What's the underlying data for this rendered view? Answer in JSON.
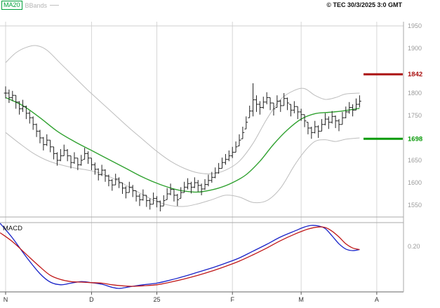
{
  "header": {
    "copyright": "© TEC 30/3/2025 3:0 GMT"
  },
  "legend": {
    "ma20": "MA20",
    "bbands": "BBands"
  },
  "chart_data": {
    "type": "candlestick",
    "title": "",
    "x_labels": [
      {
        "label": "N",
        "index": 0
      },
      {
        "label": "D",
        "index": 25
      },
      {
        "label": "25",
        "index": 44
      },
      {
        "label": "F",
        "index": 66
      },
      {
        "label": "M",
        "index": 86
      },
      {
        "label": "A",
        "index": 108
      }
    ],
    "price_panel": {
      "ylim": [
        1523,
        1961
      ],
      "y_ticks": [
        1950,
        1900,
        1800,
        1750,
        1650,
        1600,
        1550
      ],
      "levels": [
        {
          "name": "resistance",
          "label": "1842",
          "value": 1842,
          "color": "#aa1111"
        },
        {
          "name": "support",
          "label": "1698",
          "value": 1698,
          "color": "#089a08"
        }
      ],
      "bar_color": "#222222",
      "bars_hlc": [
        [
          1815,
          1788,
          1800
        ],
        [
          1808,
          1778,
          1790
        ],
        [
          1805,
          1782,
          1795
        ],
        [
          1795,
          1765,
          1780
        ],
        [
          1782,
          1752,
          1765
        ],
        [
          1785,
          1758,
          1770
        ],
        [
          1772,
          1742,
          1755
        ],
        [
          1760,
          1732,
          1745
        ],
        [
          1748,
          1718,
          1730
        ],
        [
          1732,
          1702,
          1715
        ],
        [
          1718,
          1688,
          1700
        ],
        [
          1702,
          1672,
          1685
        ],
        [
          1708,
          1682,
          1695
        ],
        [
          1695,
          1668,
          1680
        ],
        [
          1680,
          1652,
          1665
        ],
        [
          1668,
          1638,
          1650
        ],
        [
          1675,
          1648,
          1660
        ],
        [
          1685,
          1660,
          1672
        ],
        [
          1675,
          1648,
          1660
        ],
        [
          1660,
          1632,
          1645
        ],
        [
          1668,
          1642,
          1655
        ],
        [
          1655,
          1628,
          1640
        ],
        [
          1662,
          1638,
          1650
        ],
        [
          1678,
          1652,
          1665
        ],
        [
          1670,
          1642,
          1655
        ],
        [
          1655,
          1628,
          1640
        ],
        [
          1645,
          1618,
          1630
        ],
        [
          1632,
          1605,
          1618
        ],
        [
          1640,
          1615,
          1628
        ],
        [
          1630,
          1602,
          1615
        ],
        [
          1618,
          1592,
          1605
        ],
        [
          1608,
          1582,
          1595
        ],
        [
          1620,
          1595,
          1608
        ],
        [
          1612,
          1588,
          1600
        ],
        [
          1600,
          1575,
          1588
        ],
        [
          1592,
          1565,
          1578
        ],
        [
          1602,
          1578,
          1590
        ],
        [
          1595,
          1568,
          1582
        ],
        [
          1582,
          1558,
          1570
        ],
        [
          1575,
          1548,
          1562
        ],
        [
          1585,
          1560,
          1572
        ],
        [
          1572,
          1546,
          1560
        ],
        [
          1565,
          1540,
          1552
        ],
        [
          1578,
          1552,
          1565
        ],
        [
          1570,
          1545,
          1558
        ],
        [
          1560,
          1536,
          1548
        ],
        [
          1572,
          1548,
          1560
        ],
        [
          1588,
          1562,
          1575
        ],
        [
          1598,
          1572,
          1585
        ],
        [
          1585,
          1558,
          1572
        ],
        [
          1575,
          1548,
          1562
        ],
        [
          1590,
          1565,
          1578
        ],
        [
          1602,
          1578,
          1590
        ],
        [
          1610,
          1585,
          1598
        ],
        [
          1602,
          1576,
          1590
        ],
        [
          1612,
          1588,
          1600
        ],
        [
          1606,
          1580,
          1594
        ],
        [
          1598,
          1572,
          1586
        ],
        [
          1608,
          1584,
          1596
        ],
        [
          1618,
          1592,
          1605
        ],
        [
          1624,
          1600,
          1612
        ],
        [
          1634,
          1610,
          1622
        ],
        [
          1644,
          1620,
          1632
        ],
        [
          1656,
          1632,
          1645
        ],
        [
          1664,
          1640,
          1652
        ],
        [
          1672,
          1648,
          1660
        ],
        [
          1680,
          1655,
          1668
        ],
        [
          1692,
          1668,
          1680
        ],
        [
          1708,
          1682,
          1695
        ],
        [
          1725,
          1698,
          1712
        ],
        [
          1748,
          1720,
          1735
        ],
        [
          1772,
          1745,
          1760
        ],
        [
          1822,
          1748,
          1785
        ],
        [
          1795,
          1758,
          1775
        ],
        [
          1782,
          1752,
          1768
        ],
        [
          1792,
          1765,
          1780
        ],
        [
          1802,
          1775,
          1790
        ],
        [
          1790,
          1762,
          1778
        ],
        [
          1778,
          1750,
          1765
        ],
        [
          1795,
          1768,
          1782
        ],
        [
          1785,
          1758,
          1772
        ],
        [
          1800,
          1772,
          1788
        ],
        [
          1790,
          1762,
          1778
        ],
        [
          1775,
          1748,
          1762
        ],
        [
          1782,
          1755,
          1770
        ],
        [
          1770,
          1742,
          1758
        ],
        [
          1765,
          1738,
          1752
        ],
        [
          1752,
          1724,
          1738
        ],
        [
          1735,
          1708,
          1722
        ],
        [
          1725,
          1698,
          1712
        ],
        [
          1738,
          1710,
          1725
        ],
        [
          1728,
          1700,
          1715
        ],
        [
          1742,
          1715,
          1730
        ],
        [
          1755,
          1728,
          1742
        ],
        [
          1748,
          1720,
          1735
        ],
        [
          1760,
          1732,
          1748
        ],
        [
          1750,
          1722,
          1738
        ],
        [
          1742,
          1715,
          1730
        ],
        [
          1758,
          1730,
          1745
        ],
        [
          1770,
          1744,
          1758
        ],
        [
          1780,
          1754,
          1768
        ],
        [
          1775,
          1748,
          1762
        ],
        [
          1788,
          1762,
          1775
        ],
        [
          1795,
          1768,
          1782
        ]
      ],
      "ma20": {
        "name": "MA20",
        "color": "#2fa12f",
        "points": [
          [
            0,
            1790
          ],
          [
            5,
            1772
          ],
          [
            10,
            1745
          ],
          [
            15,
            1715
          ],
          [
            20,
            1692
          ],
          [
            25,
            1672
          ],
          [
            30,
            1652
          ],
          [
            35,
            1632
          ],
          [
            40,
            1612
          ],
          [
            45,
            1596
          ],
          [
            50,
            1584
          ],
          [
            55,
            1579
          ],
          [
            58,
            1581
          ],
          [
            62,
            1588
          ],
          [
            66,
            1600
          ],
          [
            70,
            1618
          ],
          [
            74,
            1648
          ],
          [
            78,
            1686
          ],
          [
            82,
            1718
          ],
          [
            86,
            1742
          ],
          [
            90,
            1754
          ],
          [
            94,
            1757
          ],
          [
            98,
            1760
          ],
          [
            103,
            1766
          ]
        ]
      },
      "bollinger_upper": {
        "name": "BBands upper",
        "color": "#bdbdbd",
        "points": [
          [
            0,
            1868
          ],
          [
            3,
            1890
          ],
          [
            6,
            1902
          ],
          [
            9,
            1906
          ],
          [
            12,
            1896
          ],
          [
            16,
            1866
          ],
          [
            20,
            1836
          ],
          [
            24,
            1806
          ],
          [
            28,
            1778
          ],
          [
            32,
            1750
          ],
          [
            36,
            1722
          ],
          [
            40,
            1696
          ],
          [
            44,
            1670
          ],
          [
            48,
            1648
          ],
          [
            52,
            1632
          ],
          [
            56,
            1622
          ],
          [
            60,
            1620
          ],
          [
            64,
            1628
          ],
          [
            68,
            1648
          ],
          [
            72,
            1688
          ],
          [
            76,
            1742
          ],
          [
            80,
            1786
          ],
          [
            84,
            1806
          ],
          [
            87,
            1810
          ],
          [
            90,
            1795
          ],
          [
            93,
            1786
          ],
          [
            96,
            1790
          ],
          [
            99,
            1798
          ],
          [
            103,
            1800
          ]
        ]
      },
      "bollinger_lower": {
        "name": "BBands lower",
        "color": "#bdbdbd",
        "points": [
          [
            0,
            1712
          ],
          [
            4,
            1688
          ],
          [
            8,
            1666
          ],
          [
            12,
            1650
          ],
          [
            16,
            1640
          ],
          [
            20,
            1633
          ],
          [
            24,
            1628
          ],
          [
            28,
            1620
          ],
          [
            32,
            1607
          ],
          [
            36,
            1590
          ],
          [
            40,
            1573
          ],
          [
            44,
            1558
          ],
          [
            48,
            1549
          ],
          [
            52,
            1547
          ],
          [
            56,
            1553
          ],
          [
            60,
            1562
          ],
          [
            64,
            1572
          ],
          [
            68,
            1568
          ],
          [
            72,
            1556
          ],
          [
            76,
            1560
          ],
          [
            80,
            1588
          ],
          [
            84,
            1638
          ],
          [
            87,
            1670
          ],
          [
            90,
            1692
          ],
          [
            93,
            1696
          ],
          [
            96,
            1692
          ],
          [
            99,
            1697
          ],
          [
            103,
            1700
          ]
        ]
      }
    },
    "macd_panel": {
      "label": "MACD",
      "ylim": [
        -0.23,
        0.43
      ],
      "y_ticks": [
        {
          "label": "0.20",
          "value": 0.2
        }
      ],
      "macd_line": {
        "name": "MACD",
        "color": "#1822c8",
        "points": [
          [
            -1.6,
            0.42
          ],
          [
            2,
            0.28
          ],
          [
            6,
            0.1
          ],
          [
            10,
            -0.06
          ],
          [
            13,
            -0.14
          ],
          [
            16,
            -0.165
          ],
          [
            19,
            -0.15
          ],
          [
            22,
            -0.135
          ],
          [
            25,
            -0.145
          ],
          [
            28,
            -0.16
          ],
          [
            31,
            -0.19
          ],
          [
            33,
            -0.2
          ],
          [
            36,
            -0.185
          ],
          [
            40,
            -0.165
          ],
          [
            44,
            -0.15
          ],
          [
            48,
            -0.12
          ],
          [
            52,
            -0.085
          ],
          [
            56,
            -0.045
          ],
          [
            60,
            -0.005
          ],
          [
            64,
            0.04
          ],
          [
            68,
            0.09
          ],
          [
            72,
            0.155
          ],
          [
            76,
            0.22
          ],
          [
            80,
            0.29
          ],
          [
            84,
            0.345
          ],
          [
            87,
            0.385
          ],
          [
            89,
            0.4
          ],
          [
            91,
            0.395
          ],
          [
            93,
            0.37
          ],
          [
            95,
            0.3
          ],
          [
            97,
            0.225
          ],
          [
            99,
            0.175
          ],
          [
            101,
            0.16
          ],
          [
            103,
            0.17
          ]
        ]
      },
      "signal_line": {
        "name": "Signal",
        "color": "#c01818",
        "points": [
          [
            -1.6,
            0.33
          ],
          [
            2,
            0.245
          ],
          [
            6,
            0.125
          ],
          [
            10,
            0.005
          ],
          [
            13,
            -0.075
          ],
          [
            16,
            -0.115
          ],
          [
            19,
            -0.135
          ],
          [
            22,
            -0.14
          ],
          [
            25,
            -0.145
          ],
          [
            28,
            -0.15
          ],
          [
            31,
            -0.165
          ],
          [
            34,
            -0.175
          ],
          [
            37,
            -0.18
          ],
          [
            40,
            -0.175
          ],
          [
            44,
            -0.165
          ],
          [
            48,
            -0.14
          ],
          [
            52,
            -0.11
          ],
          [
            56,
            -0.075
          ],
          [
            60,
            -0.035
          ],
          [
            64,
            0.01
          ],
          [
            68,
            0.06
          ],
          [
            72,
            0.12
          ],
          [
            76,
            0.185
          ],
          [
            80,
            0.255
          ],
          [
            84,
            0.315
          ],
          [
            88,
            0.365
          ],
          [
            91,
            0.385
          ],
          [
            93,
            0.38
          ],
          [
            95,
            0.345
          ],
          [
            97,
            0.29
          ],
          [
            99,
            0.225
          ],
          [
            101,
            0.185
          ],
          [
            103,
            0.17
          ]
        ]
      }
    }
  }
}
